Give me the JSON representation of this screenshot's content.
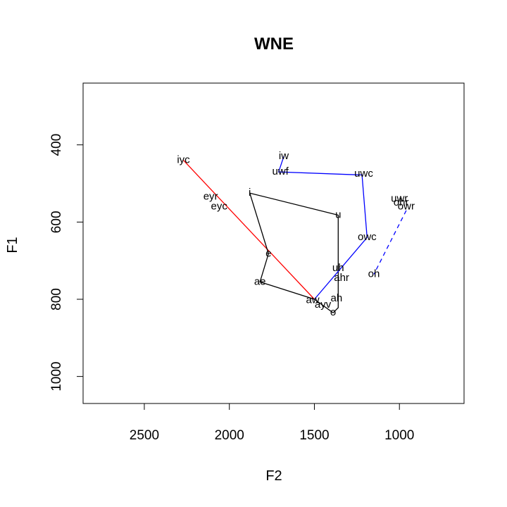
{
  "chart_data": {
    "type": "scatter",
    "title": "WNE",
    "xlabel": "F2",
    "ylabel": "F1",
    "x_reversed": true,
    "y_reversed": true,
    "xlim": [
      2860,
      620
    ],
    "ylim": [
      1070,
      240
    ],
    "x_ticks": [
      2500,
      2000,
      1500,
      1000
    ],
    "y_ticks": [
      400,
      600,
      800,
      1000
    ],
    "grid": false,
    "points": [
      {
        "label": "iyc",
        "x": 2270,
        "y": 440
      },
      {
        "label": "eyr",
        "x": 2110,
        "y": 535
      },
      {
        "label": "eyc",
        "x": 2060,
        "y": 560
      },
      {
        "label": "i",
        "x": 1880,
        "y": 525
      },
      {
        "label": "e",
        "x": 1770,
        "y": 682
      },
      {
        "label": "ae",
        "x": 1820,
        "y": 755
      },
      {
        "label": "iw",
        "x": 1680,
        "y": 430
      },
      {
        "label": "uwf",
        "x": 1700,
        "y": 470
      },
      {
        "label": "uwc",
        "x": 1210,
        "y": 475
      },
      {
        "label": "u",
        "x": 1360,
        "y": 582
      },
      {
        "label": "owc",
        "x": 1190,
        "y": 640
      },
      {
        "label": "uwr",
        "x": 1000,
        "y": 540
      },
      {
        "label": "ohr",
        "x": 990,
        "y": 550
      },
      {
        "label": "owr",
        "x": 960,
        "y": 560
      },
      {
        "label": "uh",
        "x": 1360,
        "y": 720
      },
      {
        "label": "ahr",
        "x": 1340,
        "y": 745
      },
      {
        "label": "oh",
        "x": 1150,
        "y": 735
      },
      {
        "label": "aw",
        "x": 1510,
        "y": 803
      },
      {
        "label": "ayv",
        "x": 1450,
        "y": 815
      },
      {
        "label": "ah",
        "x": 1370,
        "y": 798
      },
      {
        "label": "o",
        "x": 1390,
        "y": 835
      }
    ],
    "series": [
      {
        "color": "#ff0000",
        "style": "solid",
        "points": [
          [
            2270,
            440
          ],
          [
            1500,
            800
          ]
        ]
      },
      {
        "color": "#000000",
        "style": "solid",
        "points": [
          [
            1880,
            525
          ],
          [
            1360,
            582
          ],
          [
            1360,
            822
          ],
          [
            1390,
            835
          ],
          [
            1500,
            800
          ],
          [
            1820,
            755
          ],
          [
            1770,
            682
          ],
          [
            1880,
            525
          ]
        ]
      },
      {
        "color": "#0000ff",
        "style": "solid",
        "points": [
          [
            1680,
            430
          ],
          [
            1710,
            470
          ],
          [
            1220,
            478
          ],
          [
            1190,
            640
          ],
          [
            1500,
            800
          ]
        ]
      },
      {
        "color": "#0000ff",
        "style": "dashed",
        "points": [
          [
            960,
            570
          ],
          [
            1150,
            735
          ]
        ]
      }
    ]
  }
}
